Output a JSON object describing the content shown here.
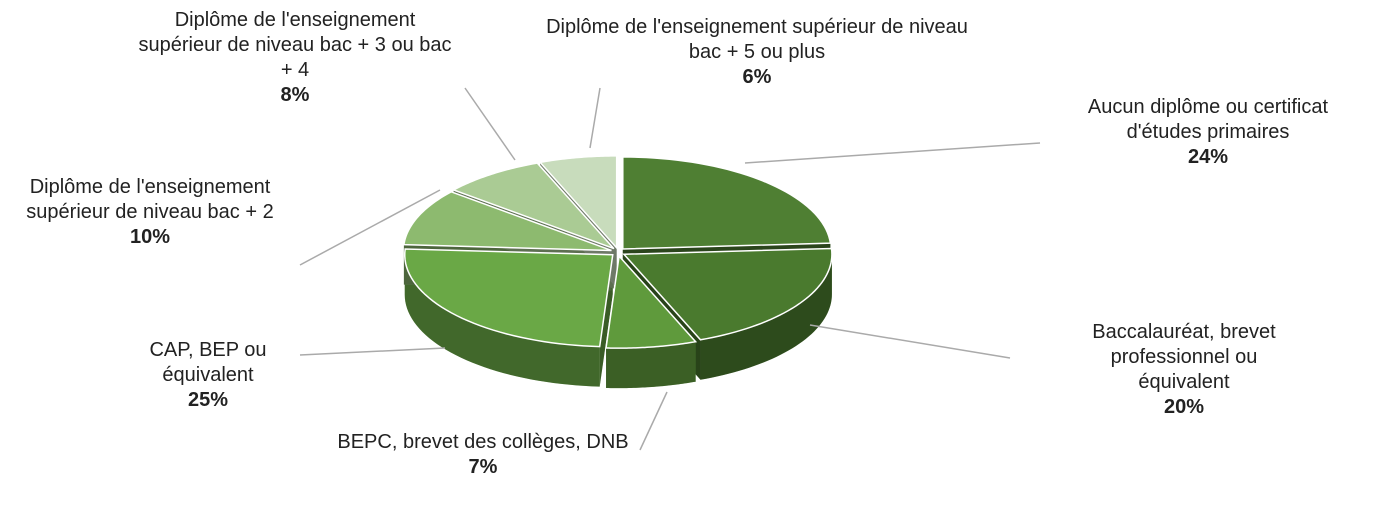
{
  "chart_data": {
    "type": "pie3d",
    "categories": [
      "Aucun diplôme ou certificat d'études primaires",
      "Baccalauréat, brevet professionnel ou équivalent",
      "BEPC, brevet des collèges, DNB",
      "CAP, BEP ou équivalent",
      "Diplôme de l'enseignement supérieur de niveau bac + 2",
      "Diplôme de l'enseignement supérieur de niveau bac + 3 ou bac + 4",
      "Diplôme de l'enseignement supérieur de niveau bac + 5 ou plus"
    ],
    "values": [
      24,
      20,
      7,
      25,
      10,
      8,
      6
    ],
    "value_labels": [
      "24%",
      "20%",
      "7%",
      "25%",
      "10%",
      "8%",
      "6%"
    ],
    "colors": [
      "#4f7f33",
      "#4a7a2e",
      "#5f9a3c",
      "#6aa846",
      "#8dba6f",
      "#aacb94",
      "#c8dcbc"
    ]
  }
}
